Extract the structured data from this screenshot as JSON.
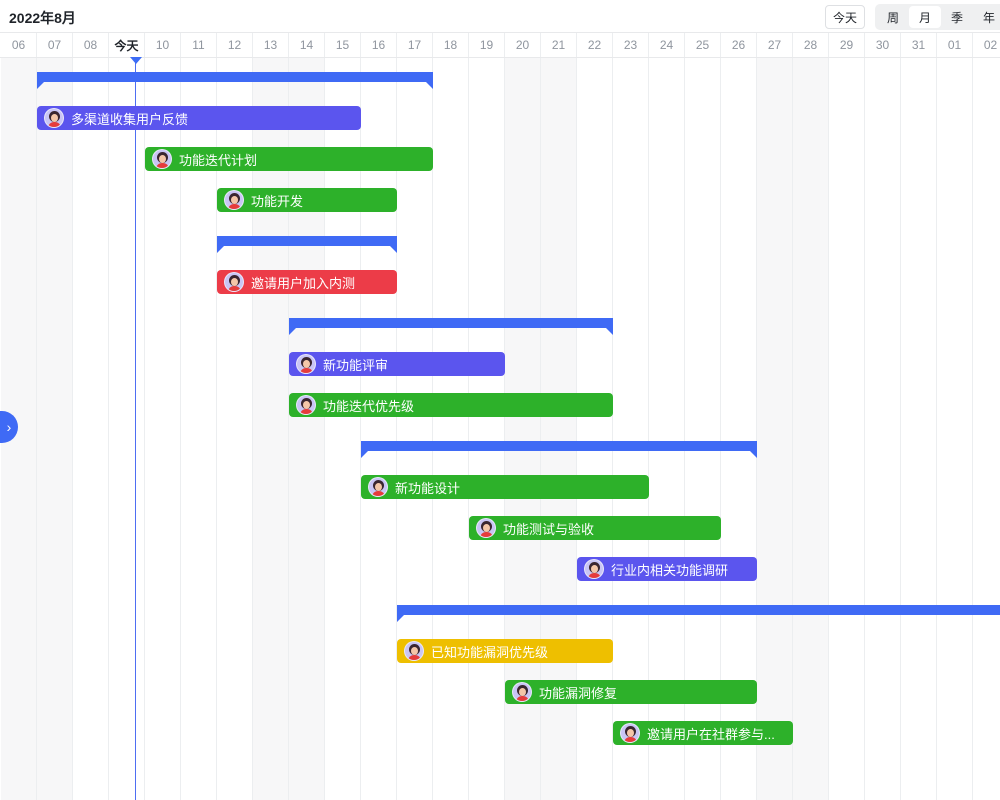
{
  "header": {
    "title": "2022年8月",
    "today_button": "今天",
    "scales": [
      "周",
      "月",
      "季",
      "年"
    ],
    "active_scale": "月"
  },
  "days": [
    "06",
    "07",
    "08",
    "今天",
    "10",
    "11",
    "12",
    "13",
    "14",
    "15",
    "16",
    "17",
    "18",
    "19",
    "20",
    "21",
    "22",
    "23",
    "24",
    "25",
    "26",
    "27",
    "28",
    "29",
    "30",
    "31",
    "01",
    "02"
  ],
  "weekends": [
    "06",
    "07",
    "13",
    "14",
    "20",
    "21",
    "27",
    "28"
  ],
  "today": "今天",
  "colors": {
    "group": "#3f6af5",
    "purple": "#5b55ee",
    "green": "#2db12a",
    "red": "#ec3c48",
    "yellow": "#eebf00"
  },
  "rows": [
    {
      "type": "group",
      "start": "07",
      "end": "17"
    },
    {
      "type": "task",
      "label": "多渠道收集用户反馈",
      "start": "07",
      "end": "15",
      "color": "purple"
    },
    {
      "type": "task",
      "label": "功能迭代计划",
      "start": "10",
      "end": "17",
      "color": "green"
    },
    {
      "type": "task",
      "label": "功能开发",
      "start": "12",
      "end": "16",
      "color": "green"
    },
    {
      "type": "group",
      "start": "12",
      "end": "16"
    },
    {
      "type": "task",
      "label": "邀请用户加入内测",
      "start": "12",
      "end": "16",
      "color": "red"
    },
    {
      "type": "group",
      "start": "14",
      "end": "22"
    },
    {
      "type": "task",
      "label": "新功能评审",
      "start": "14",
      "end": "19",
      "color": "purple"
    },
    {
      "type": "task",
      "label": "功能迭代优先级",
      "start": "14",
      "end": "22",
      "color": "green"
    },
    {
      "type": "group",
      "start": "16",
      "end": "26"
    },
    {
      "type": "task",
      "label": "新功能设计",
      "start": "16",
      "end": "23",
      "color": "green"
    },
    {
      "type": "task",
      "label": "功能测试与验收",
      "start": "19",
      "end": "25",
      "color": "green"
    },
    {
      "type": "task",
      "label": "行业内相关功能调研",
      "start": "22",
      "end": "26",
      "color": "purple"
    },
    {
      "type": "group",
      "start": "17",
      "end": "02"
    },
    {
      "type": "task",
      "label": "已知功能漏洞优先级",
      "start": "17",
      "end": "22",
      "color": "yellow"
    },
    {
      "type": "task",
      "label": "功能漏洞修复",
      "start": "20",
      "end": "26",
      "color": "green"
    },
    {
      "type": "task",
      "label": "邀请用户在社群参与...",
      "start": "23",
      "end": "27",
      "color": "green"
    }
  ],
  "expand_icon": "chevron-right-icon"
}
